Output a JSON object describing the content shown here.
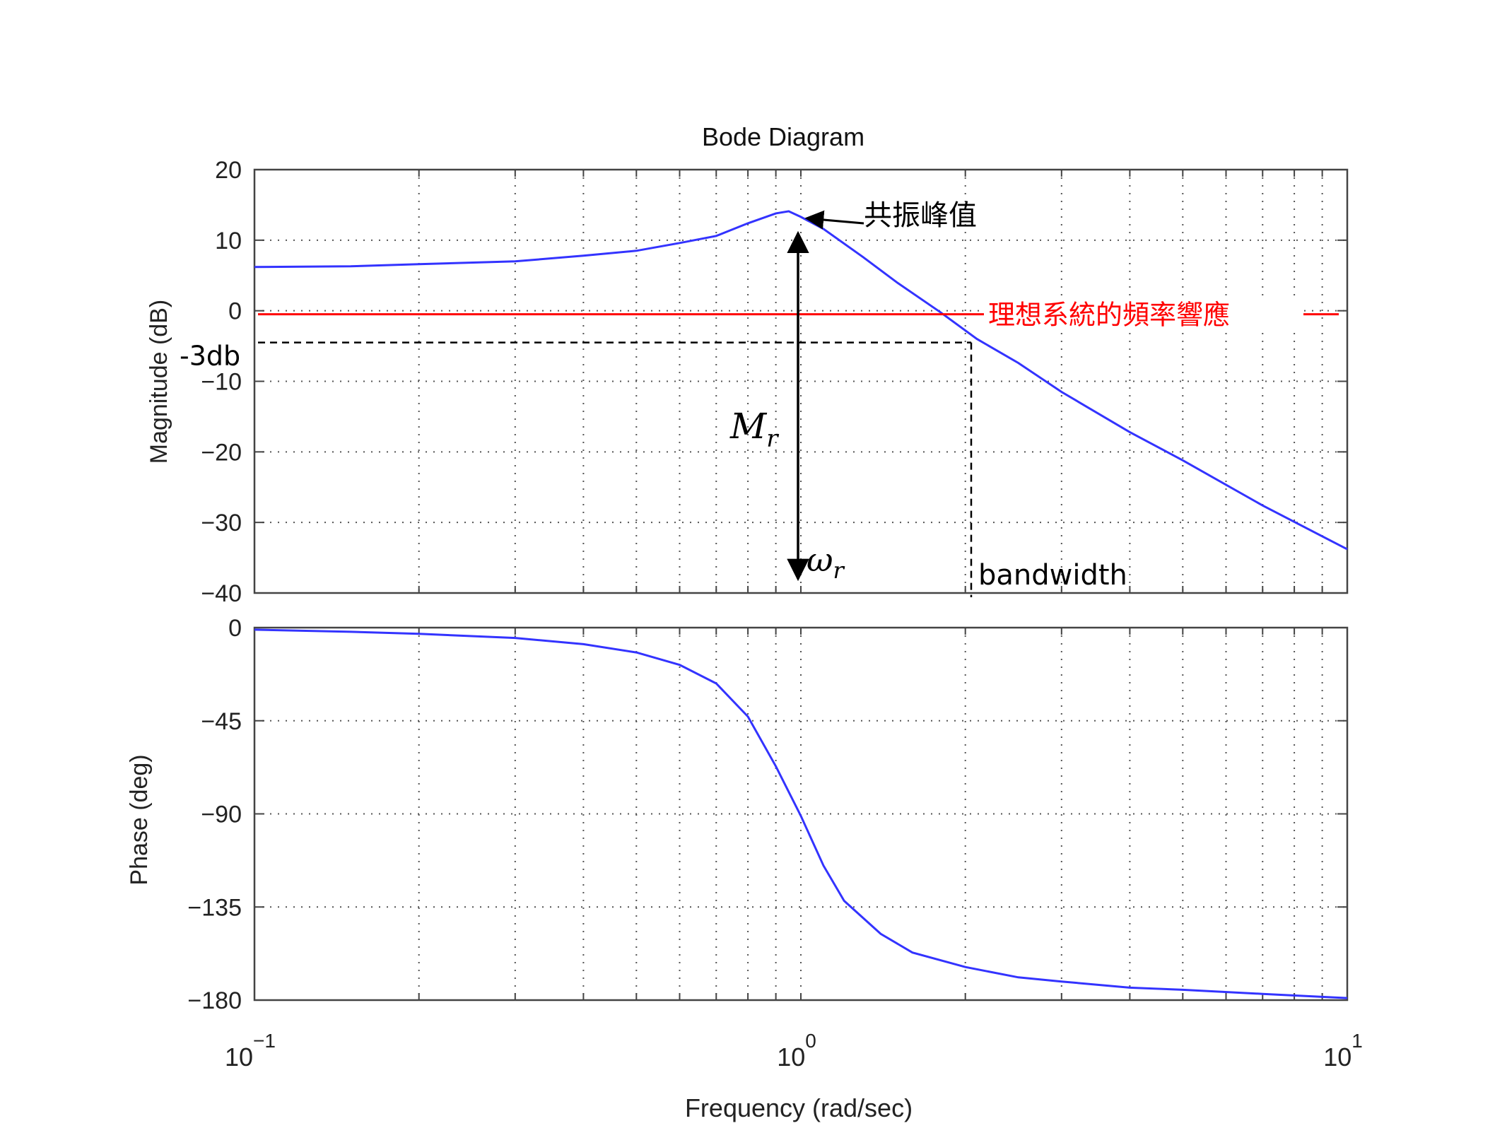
{
  "chart_data": {
    "type": "line",
    "title": "Bode Diagram",
    "xlabel": "Frequency  (rad/sec)",
    "xscale": "log",
    "xlim": [
      0.1,
      10
    ],
    "xticks": [
      {
        "value": 0.1,
        "base": "10",
        "exp": "−1"
      },
      {
        "value": 1,
        "base": "10",
        "exp": "0"
      },
      {
        "value": 10,
        "base": "10",
        "exp": "1"
      }
    ],
    "grid": true,
    "colors": {
      "response": "#3333ff",
      "ideal": "#ff0000",
      "annotation": "#000000"
    },
    "panels": [
      {
        "name": "magnitude",
        "ylabel": "Magnitude (dB)",
        "ylim": [
          -40,
          20
        ],
        "yticks": [
          {
            "value": 20,
            "label": "20"
          },
          {
            "value": 10,
            "label": "10"
          },
          {
            "value": 0,
            "label": "0"
          },
          {
            "value": -10,
            "label": "−10"
          },
          {
            "value": -20,
            "label": "−20"
          },
          {
            "value": -30,
            "label": "−30"
          },
          {
            "value": -40,
            "label": "−40"
          }
        ],
        "series": [
          {
            "x": [
              0.1,
              0.15,
              0.2,
              0.3,
              0.4,
              0.5,
              0.6,
              0.7,
              0.8,
              0.9,
              0.95,
              1.0,
              1.1,
              1.3,
              1.5,
              1.8,
              2.1,
              2.5,
              3,
              4,
              5,
              7,
              10
            ],
            "y": [
              6.2,
              6.3,
              6.6,
              7.0,
              7.8,
              8.5,
              9.6,
              10.6,
              12.4,
              13.8,
              14.1,
              13.3,
              11.6,
              7.6,
              4.0,
              -0.2,
              -4.0,
              -7.4,
              -11.5,
              -17.2,
              -21.2,
              -27.6,
              -33.8
            ]
          }
        ]
      },
      {
        "name": "phase",
        "ylabel": "Phase (deg)",
        "ylim": [
          -180,
          0
        ],
        "yticks": [
          {
            "value": 0,
            "label": "0"
          },
          {
            "value": -45,
            "label": "−45"
          },
          {
            "value": -90,
            "label": "−90"
          },
          {
            "value": -135,
            "label": "−135"
          },
          {
            "value": -180,
            "label": "−180"
          }
        ],
        "series": [
          {
            "x": [
              0.1,
              0.15,
              0.2,
              0.3,
              0.4,
              0.5,
              0.6,
              0.7,
              0.8,
              0.9,
              1.0,
              1.1,
              1.2,
              1.4,
              1.6,
              2.0,
              2.5,
              3,
              4,
              5,
              7,
              10
            ],
            "y": [
              -1,
              -2,
              -3,
              -5,
              -8,
              -12,
              -18,
              -27,
              -43,
              -67,
              -91,
              -115,
              -132,
              -148,
              -157,
              -164,
              -169,
              -171,
              -174,
              -175,
              -177,
              -179
            ]
          }
        ]
      }
    ],
    "annotations": {
      "resonance_peak_label": "共振峰值",
      "ideal_label": "理想系統的頻率響應",
      "ideal_level_db": -0.5,
      "minus3db_label": "-3db",
      "minus3db_level_db": -4.5,
      "bandwidth_label": "bandwidth",
      "bandwidth_freq": 2.05,
      "resonance_freq": 1.0,
      "resonance_peak_db": 13.5,
      "arrow_bottom_db": -38,
      "mr_base": "M",
      "mr_sub": "r",
      "wr_base": "ω",
      "wr_sub": "r"
    }
  }
}
